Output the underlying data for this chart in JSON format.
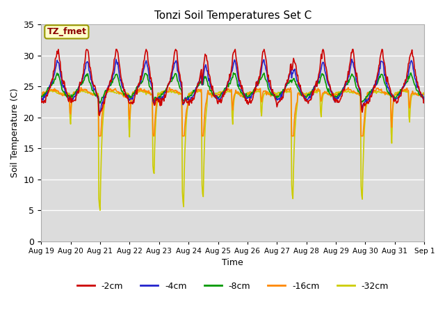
{
  "title": "Tonzi Soil Temperatures Set C",
  "xlabel": "Time",
  "ylabel": "Soil Temperature (C)",
  "ylim": [
    0,
    35
  ],
  "yticks": [
    0,
    5,
    10,
    15,
    20,
    25,
    30,
    35
  ],
  "annotation_label": "TZ_fmet",
  "annotation_color": "#8B0000",
  "annotation_bg": "#FFFFCC",
  "annotation_border": "#999900",
  "xtick_labels": [
    "Aug 19",
    "Aug 20",
    "Aug 21",
    "Aug 22",
    "Aug 23",
    "Aug 24",
    "Aug 25",
    "Aug 26",
    "Aug 27",
    "Aug 28",
    "Aug 29",
    "Aug 30",
    "Aug 31",
    "Sep 1"
  ],
  "legend_labels": [
    "-2cm",
    "-4cm",
    "-8cm",
    "-16cm",
    "-32cm"
  ],
  "line_colors": [
    "#CC0000",
    "#2222CC",
    "#009900",
    "#FF8800",
    "#CCCC00"
  ],
  "plot_bg": "#DCDCDC",
  "grid_color": "#FFFFFF"
}
